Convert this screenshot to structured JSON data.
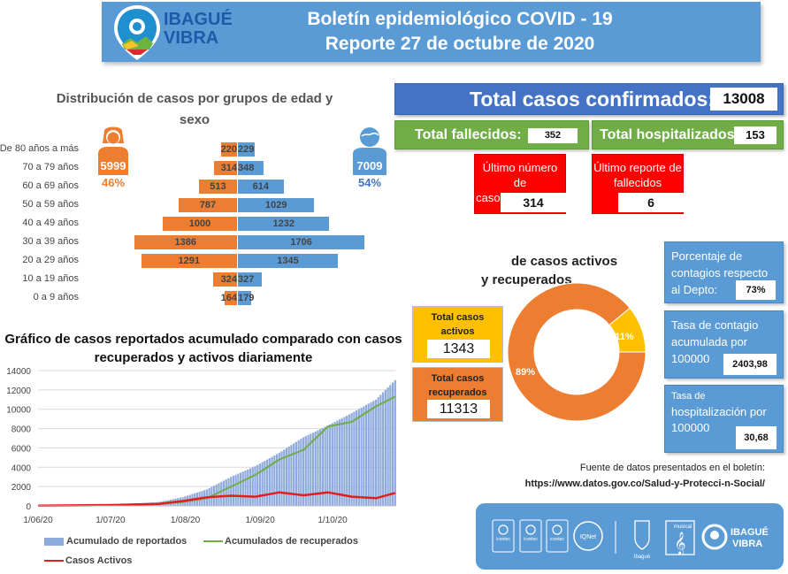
{
  "header": {
    "logo_text_line1": "IBAGUÉ",
    "logo_text_line2": "VIBRA",
    "title_line1": "Boletín epidemiológico COVID - 19",
    "title_line2": "Reporte 27 de octubre de 2020"
  },
  "pyramid": {
    "title_line1": "Distribución de casos por grupos de edad y",
    "title_line2": "sexo",
    "female": {
      "count": "5999",
      "percent": "46%",
      "icon": "female-person-icon",
      "color": "#ed7d31"
    },
    "male": {
      "count": "7009",
      "percent": "54%",
      "icon": "male-person-icon",
      "color": "#5b9bd5"
    },
    "groups": [
      {
        "label": "De 80 años a más",
        "female": 220,
        "male": 229
      },
      {
        "label": "70 a 79 años",
        "female": 314,
        "male": 348
      },
      {
        "label": "60 a 69 años",
        "female": 513,
        "male": 614
      },
      {
        "label": "50 a 59 años",
        "female": 787,
        "male": 1029
      },
      {
        "label": "40 a 49 años",
        "female": 1000,
        "male": 1232
      },
      {
        "label": "30 a 39 años",
        "female": 1386,
        "male": 1706
      },
      {
        "label": "20 a 29 años",
        "female": 1291,
        "male": 1345
      },
      {
        "label": "10 a 19 años",
        "female": 324,
        "male": 327
      },
      {
        "label": "0 a 9 años",
        "female": 164,
        "male": 179
      }
    ]
  },
  "totals": {
    "confirmed_label": "Total casos confirmados:",
    "confirmed_value": "13008",
    "deaths_label": "Total fallecidos:",
    "deaths_value": "352",
    "hospitalized_label": "Total hospitalizados:",
    "hospitalized_value": "153",
    "last_cases_label_line1": "Último número de",
    "last_cases_label_line2": "casos reportados",
    "last_cases_value": "314",
    "last_deaths_label_line1": "Último reporte de",
    "last_deaths_label_line2": "fallecidos",
    "last_deaths_value": "6"
  },
  "stats": {
    "dept_pct_line1": "Porcentaje de",
    "dept_pct_line2": "contagios respecto",
    "dept_pct_line3": "al Depto:",
    "dept_pct_value": "73%",
    "rate_line1": "Tasa de contagio",
    "rate_line2": "acumulada por",
    "rate_line3": "100000",
    "rate_value": "2403,98",
    "hosp_line1": "Tasa de",
    "hosp_line2": "hospitalización por",
    "hosp_line3": "100000",
    "hosp_value": "30,68"
  },
  "active_recovered": {
    "title_line1": "de casos activos",
    "title_line2": "y recuperados",
    "active_label_line1": "Total casos",
    "active_label_line2": "activos",
    "active_value": "1343",
    "recovered_label_line1": "Total casos",
    "recovered_label_line2": "recuperados",
    "recovered_value": "11313",
    "active_pct": "11%",
    "recovered_pct": "89%",
    "active_color": "#ffc000",
    "recovered_color": "#ed7d31"
  },
  "chart_data": [
    {
      "type": "bar",
      "title": "Distribución de casos por grupos de edad y sexo",
      "categories": [
        "De 80 años a más",
        "70 a 79 años",
        "60 a 69 años",
        "50 a 59 años",
        "40 a 49 años",
        "30 a 39 años",
        "20 a 29 años",
        "10 a 19 años",
        "0 a 9 años"
      ],
      "series": [
        {
          "name": "Mujeres",
          "values": [
            220,
            314,
            513,
            787,
            1000,
            1386,
            1291,
            324,
            164
          ]
        },
        {
          "name": "Hombres",
          "values": [
            229,
            348,
            614,
            1029,
            1232,
            1706,
            1345,
            327,
            179
          ]
        }
      ]
    },
    {
      "type": "pie",
      "title": "de casos activos y recuperados",
      "categories": [
        "Activos",
        "Recuperados"
      ],
      "values": [
        11,
        89
      ]
    },
    {
      "type": "line",
      "title_line1": "Gráfico de casos reportados acumulado comparado con casos",
      "title_line2": "recuperados y activos diariamente",
      "ylim": [
        0,
        14000
      ],
      "yticks": [
        "0",
        "2000",
        "4000",
        "6000",
        "8000",
        "10000",
        "12000",
        "14000"
      ],
      "xticks": [
        "1/06/20",
        "1/07/20",
        "1/08/20",
        "1/09/20",
        "1/10/20"
      ],
      "x_days": [
        0,
        10,
        20,
        30,
        40,
        50,
        60,
        70,
        80,
        90,
        100,
        110,
        120,
        130,
        140,
        148
      ],
      "series": [
        {
          "name": "Acumulado de reportados",
          "kind": "area",
          "color": "#8faadc",
          "values": [
            20,
            60,
            100,
            150,
            250,
            400,
            900,
            1700,
            3000,
            4100,
            5500,
            7100,
            8300,
            9600,
            11000,
            13008
          ]
        },
        {
          "name": "Acumulados de recuperados",
          "kind": "line",
          "color": "#70ad47",
          "values": [
            0,
            10,
            30,
            60,
            100,
            200,
            400,
            800,
            2000,
            3200,
            4800,
            5800,
            8200,
            8700,
            10300,
            11313
          ]
        },
        {
          "name": "Casos Activos",
          "kind": "line",
          "color": "#e41e1e",
          "values": [
            20,
            50,
            70,
            90,
            150,
            200,
            500,
            900,
            1050,
            950,
            1400,
            1100,
            1400,
            950,
            800,
            1343
          ]
        }
      ]
    }
  ],
  "source": {
    "label": "Fuente de datos presentados en el boletín:",
    "url": "https://www.datos.gov.co/Salud-y-Protecci-n-Social/"
  },
  "footer": {
    "logos": [
      "icontec-logo",
      "icontec-logo",
      "icontec-logo",
      "iqnet-logo",
      "ibague-coat-of-arms",
      "conservatorio-musical-logo",
      "ibague-vibra-logo"
    ],
    "logo_text_line1": "IBAGUÉ",
    "logo_text_line2": "VIBRA",
    "ibague_label": "Ibagué",
    "musical_label": "musical",
    "icontec_label": "icontec",
    "iqnet_label": "IQNet"
  }
}
